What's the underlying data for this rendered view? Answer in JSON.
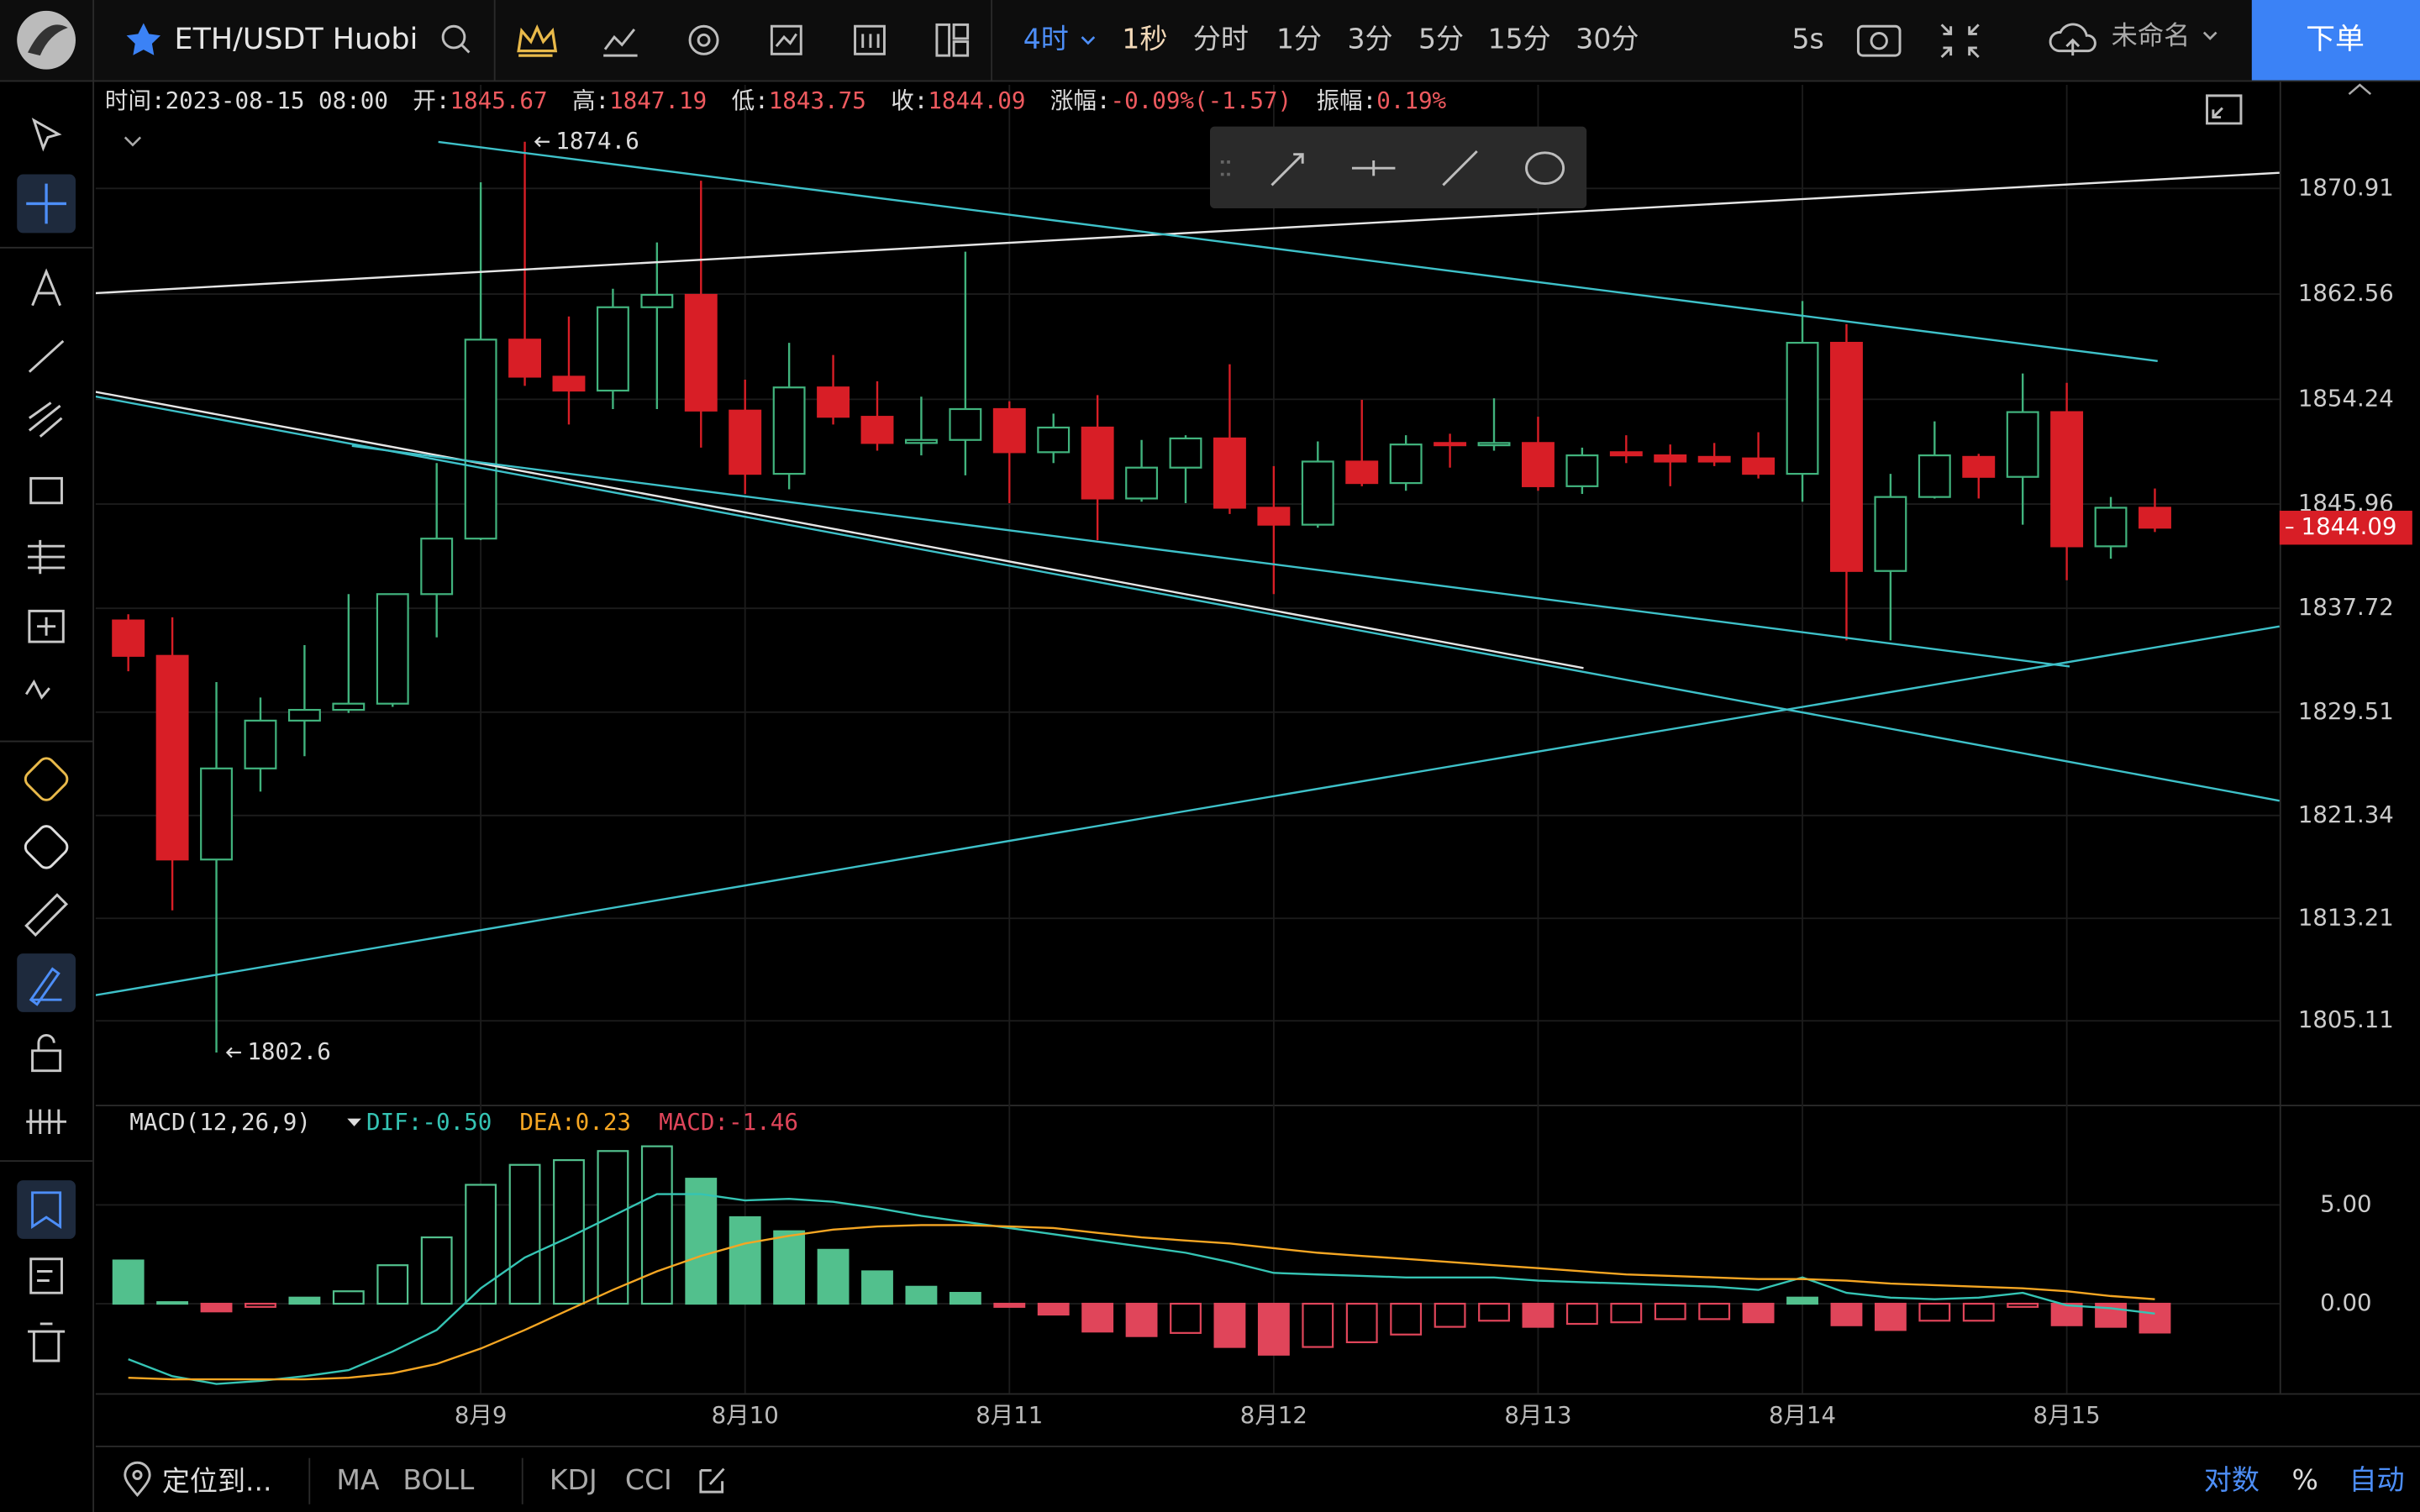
{
  "toolbar": {
    "symbol": "ETH/USDT Huobi",
    "intervals": [
      "4时",
      "1秒",
      "分时",
      "1分",
      "3分",
      "5分",
      "15分",
      "30分"
    ],
    "speed": "5s",
    "layout_name": "未命名",
    "order_button": "下单"
  },
  "info": {
    "time_label": "时间:",
    "time": "2023-08-15 08:00",
    "open_label": "开:",
    "high_label": "高:",
    "low_label": "低:",
    "close_label": "收:",
    "change_label": "涨幅:",
    "change": "-0.09%(-1.57)",
    "amp_label": "振幅:",
    "amp": "0.19%"
  },
  "bottom_bar": {
    "locate": "定位到...",
    "indicators": [
      "MA",
      "BOLL",
      "KDJ",
      "CCI"
    ],
    "log": "对数",
    "percent": "%",
    "auto": "自动"
  },
  "chart_data": [
    {
      "type": "candlestick",
      "up_color": "#41b37d",
      "down_color": "#d81e26",
      "grid": true,
      "x": [
        0,
        1,
        2,
        3,
        4,
        5,
        6,
        7,
        8,
        9,
        10,
        11,
        12,
        13,
        14,
        15,
        16,
        17,
        18,
        19,
        20,
        21,
        22,
        23,
        24,
        25,
        26,
        27,
        28,
        29,
        30,
        31,
        32,
        33,
        34,
        35,
        36,
        37,
        38,
        39,
        40,
        41,
        42,
        43,
        44,
        45,
        46
      ],
      "open": [
        1836.76,
        1833.96,
        1817.86,
        1825.06,
        1828.84,
        1829.69,
        1830.18,
        1838.84,
        1843.23,
        1858.96,
        1856.03,
        1854.93,
        1861.52,
        1862.5,
        1853.35,
        1848.35,
        1855.18,
        1852.86,
        1850.79,
        1851.03,
        1853.47,
        1850.06,
        1852.01,
        1846.4,
        1848.84,
        1851.15,
        1845.67,
        1844.33,
        1849.32,
        1847.62,
        1850.79,
        1850.67,
        1850.79,
        1847.37,
        1850.06,
        1849.81,
        1849.69,
        1849.57,
        1848.35,
        1858.71,
        1840.67,
        1846.52,
        1849.69,
        1848.11,
        1853.23,
        1842.62,
        1845.67
      ],
      "high": [
        1837.25,
        1837.01,
        1831.89,
        1830.67,
        1834.81,
        1838.84,
        1838.84,
        1849.2,
        1871.4,
        1874.6,
        1860.79,
        1862.98,
        1866.64,
        1871.52,
        1855.79,
        1858.71,
        1857.74,
        1855.67,
        1854.45,
        1865.91,
        1854.08,
        1853.11,
        1854.57,
        1851.03,
        1851.4,
        1857.01,
        1848.96,
        1850.91,
        1854.2,
        1851.4,
        1851.52,
        1854.32,
        1852.86,
        1850.42,
        1851.4,
        1850.67,
        1850.79,
        1851.64,
        1862.01,
        1860.18,
        1848.35,
        1852.5,
        1849.93,
        1856.28,
        1855.54,
        1846.52,
        1847.19
      ],
      "low": [
        1832.74,
        1813.84,
        1802.6,
        1823.23,
        1826.03,
        1829.45,
        1829.93,
        1835.42,
        1843.11,
        1855.3,
        1852.25,
        1853.47,
        1853.47,
        1850.42,
        1846.76,
        1847.13,
        1852.25,
        1850.18,
        1849.81,
        1848.23,
        1846.03,
        1849.2,
        1843.11,
        1846.15,
        1846.03,
        1845.18,
        1838.84,
        1844.09,
        1847.37,
        1847.01,
        1848.84,
        1850.18,
        1847.01,
        1846.76,
        1849.2,
        1847.37,
        1848.96,
        1847.98,
        1846.15,
        1835.18,
        1835.18,
        1846.4,
        1846.4,
        1844.33,
        1839.94,
        1841.64,
        1843.75
      ],
      "close": [
        1833.96,
        1817.86,
        1825.06,
        1828.84,
        1829.69,
        1830.18,
        1838.84,
        1843.23,
        1858.96,
        1856.03,
        1854.93,
        1861.52,
        1862.5,
        1853.35,
        1848.35,
        1855.18,
        1852.86,
        1850.79,
        1851.03,
        1853.47,
        1850.06,
        1852.01,
        1846.4,
        1848.84,
        1851.15,
        1845.67,
        1844.33,
        1849.32,
        1847.62,
        1850.67,
        1850.67,
        1850.79,
        1847.37,
        1849.81,
        1849.81,
        1849.32,
        1849.32,
        1848.35,
        1858.71,
        1840.67,
        1846.52,
        1849.81,
        1848.11,
        1853.23,
        1842.62,
        1845.67,
        1844.09
      ],
      "xlim": [
        -0.74,
        48.83
      ],
      "xticks": [
        {
          "value": 8,
          "label": "8月9"
        },
        {
          "value": 14,
          "label": "8月10"
        },
        {
          "value": 20,
          "label": "8月11"
        },
        {
          "value": 26,
          "label": "8月12"
        },
        {
          "value": 32,
          "label": "8月13"
        },
        {
          "value": 38,
          "label": "8月14"
        },
        {
          "value": 44,
          "label": "8月15"
        }
      ],
      "ylim": [
        1798.6,
        1879.1
      ],
      "yticks": [
        1870.91,
        1862.56,
        1854.24,
        1845.96,
        1837.72,
        1829.51,
        1821.34,
        1813.21,
        1805.11
      ]
    },
    {
      "type": "macd",
      "title": "MACD(12,26,9)",
      "legend": [
        "DIF:-0.50",
        "DEA:0.23",
        "MACD:-1.46"
      ],
      "up_color": "#52c08d",
      "down_color": "#e0455a",
      "dif_color": "#35c4b4",
      "dea_color": "#f5a623",
      "x": [
        0,
        1,
        2,
        3,
        4,
        5,
        6,
        7,
        8,
        9,
        10,
        11,
        12,
        13,
        14,
        15,
        16,
        17,
        18,
        19,
        20,
        21,
        22,
        23,
        24,
        25,
        26,
        27,
        28,
        29,
        30,
        31,
        32,
        33,
        34,
        35,
        36,
        37,
        38,
        39,
        40,
        41,
        42,
        43,
        44,
        45,
        46
      ],
      "hist": [
        2.19,
        0.08,
        -0.39,
        -0.16,
        0.31,
        0.63,
        1.95,
        3.36,
        6.02,
        7.03,
        7.27,
        7.73,
        7.97,
        6.33,
        4.38,
        3.67,
        2.73,
        1.64,
        0.86,
        0.55,
        -0.16,
        -0.55,
        -1.41,
        -1.64,
        -1.48,
        -2.19,
        -2.58,
        -2.19,
        -1.95,
        -1.56,
        -1.17,
        -0.86,
        -1.17,
        -1.02,
        -0.94,
        -0.78,
        -0.78,
        -0.94,
        0.31,
        -1.09,
        -1.33,
        -0.86,
        -0.86,
        -0.16,
        -1.09,
        -1.17,
        -1.46
      ],
      "dif": [
        -2.81,
        -3.67,
        -4.06,
        -3.91,
        -3.67,
        -3.36,
        -2.42,
        -1.33,
        0.78,
        2.34,
        3.36,
        4.45,
        5.55,
        5.55,
        5.23,
        5.31,
        5.16,
        4.84,
        4.45,
        4.14,
        3.83,
        3.52,
        3.2,
        2.89,
        2.58,
        2.11,
        1.56,
        1.48,
        1.41,
        1.33,
        1.33,
        1.33,
        1.17,
        1.09,
        1.02,
        0.94,
        0.86,
        0.7,
        1.33,
        0.55,
        0.31,
        0.23,
        0.31,
        0.55,
        -0.08,
        -0.23,
        -0.5
      ],
      "dea": [
        -3.75,
        -3.83,
        -3.83,
        -3.83,
        -3.83,
        -3.75,
        -3.52,
        -3.05,
        -2.27,
        -1.33,
        -0.31,
        0.7,
        1.64,
        2.42,
        3.05,
        3.44,
        3.75,
        3.91,
        3.98,
        3.98,
        3.91,
        3.83,
        3.59,
        3.36,
        3.2,
        3.05,
        2.81,
        2.58,
        2.42,
        2.27,
        2.11,
        1.95,
        1.8,
        1.64,
        1.48,
        1.41,
        1.33,
        1.25,
        1.25,
        1.17,
        1.02,
        0.94,
        0.86,
        0.78,
        0.63,
        0.39,
        0.23
      ],
      "xlim": [
        -0.74,
        48.83
      ],
      "ylim": [
        -4.53,
        9.92
      ],
      "yticks": [
        {
          "value": 5,
          "label": "5.00"
        },
        {
          "value": 0,
          "label": "0.00"
        }
      ]
    }
  ]
}
